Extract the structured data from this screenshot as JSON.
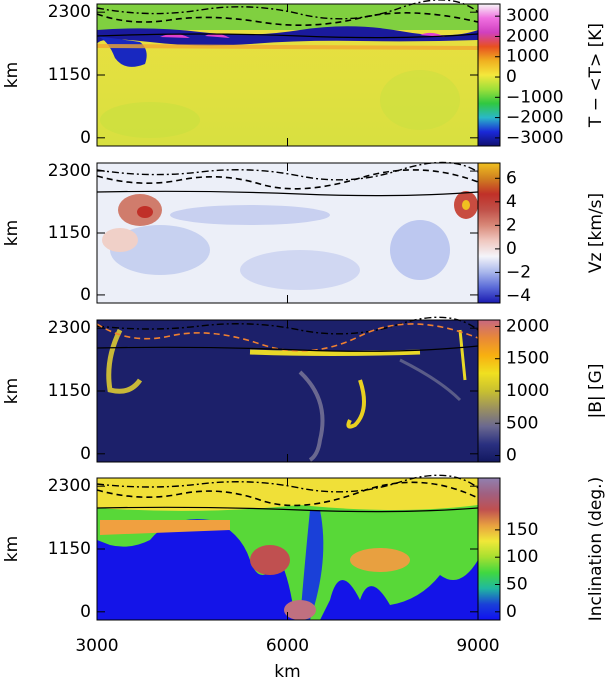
{
  "chart_data": [
    {
      "type": "heatmap",
      "ylabel": "km",
      "ylim": [
        -150,
        2450
      ],
      "yticks": [
        0,
        1150,
        2300
      ],
      "colorbar": {
        "label": "T − <T>  [K]",
        "lim": [
          -3400,
          3600
        ],
        "ticks": [
          3000,
          2000,
          1000,
          0,
          {
            "value": -1000,
            "label": "−1000"
          },
          {
            "value": -2000,
            "label": "−2000"
          },
          {
            "value": -3000,
            "label": "−3000"
          }
        ],
        "colors": [
          "#101070",
          "#1a28d8",
          "#2ab8c8",
          "#30c840",
          "#9ee03a",
          "#f4e83c",
          "#f0b020",
          "#e85020",
          "#d040c0",
          "#f070e0",
          "#f8f8f8"
        ]
      }
    },
    {
      "type": "heatmap",
      "ylabel": "km",
      "ylim": [
        -150,
        2450
      ],
      "yticks": [
        0,
        1150,
        2300
      ],
      "colorbar": {
        "label": "Vz  [km/s]",
        "lim": [
          -4.6,
          7.3
        ],
        "ticks": [
          6,
          4,
          2,
          0,
          {
            "value": -2,
            "label": "−2"
          },
          {
            "value": -4,
            "label": "−4"
          }
        ],
        "colors": [
          "#1a1ab0",
          "#5a6ad8",
          "#aab8ec",
          "#f4f4fa",
          "#f0c8c0",
          "#d88878",
          "#c05048",
          "#c03028",
          "#d08020",
          "#f0c020"
        ]
      }
    },
    {
      "type": "heatmap",
      "ylabel": "km",
      "ylim": [
        -150,
        2450
      ],
      "yticks": [
        0,
        1150,
        2300
      ],
      "colorbar": {
        "label": "|B|  [G]",
        "lim": [
          -100,
          2100
        ],
        "ticks": [
          2000,
          1500,
          1000,
          500,
          0
        ],
        "colors": [
          "#121860",
          "#2a3080",
          "#6a6890",
          "#9a9060",
          "#c8c030",
          "#f0e020",
          "#f8b010",
          "#e88838",
          "#c86880"
        ]
      }
    },
    {
      "type": "heatmap",
      "ylabel": "km",
      "ylim": [
        -150,
        2450
      ],
      "yticks": [
        0,
        1150,
        2300
      ],
      "xlabel": "km",
      "xlim": [
        3000,
        9000
      ],
      "xticks": [
        3000,
        6000,
        9000
      ],
      "colorbar": {
        "label": "Inclination  (deg.)",
        "lim": [
          -15,
          245
        ],
        "ticks": [
          150,
          100,
          50,
          0
        ],
        "colors": [
          "#1010f0",
          "#1a40d8",
          "#20b8a0",
          "#40d840",
          "#a8e030",
          "#f0e838",
          "#e8a040",
          "#c05050",
          "#a06080",
          "#9080b0"
        ]
      }
    }
  ]
}
